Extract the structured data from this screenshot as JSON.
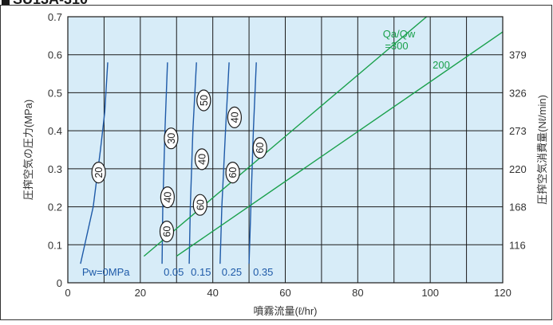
{
  "header": {
    "title": "SU13A-310"
  },
  "colors": {
    "plot_bg": "#d7ecf8",
    "grid": "#1a1a1a",
    "iso_line": "#1e5aa8",
    "ratio_line": "#19a04b",
    "text": "#333333"
  },
  "chart_data": {
    "type": "line",
    "title": "",
    "xlabel": "噴霧流量(ℓ/hr)",
    "ylabel": "圧搾空気の圧力(MPa)",
    "y2label": "圧搾空気消費量(Nℓ/min)",
    "xlim": [
      0,
      120
    ],
    "ylim": [
      0,
      0.7
    ],
    "xticks": [
      "0",
      "20",
      "40",
      "60",
      "80",
      "100",
      "120"
    ],
    "yticks": [
      "0",
      "0.1",
      "0.2",
      "0.3",
      "0.4",
      "0.5",
      "0.6",
      "0.7"
    ],
    "y2ticks": [
      {
        "y": 0.1,
        "label": "116"
      },
      {
        "y": 0.2,
        "label": "168"
      },
      {
        "y": 0.3,
        "label": "220"
      },
      {
        "y": 0.4,
        "label": "273"
      },
      {
        "y": 0.5,
        "label": "326"
      },
      {
        "y": 0.6,
        "label": "379"
      }
    ],
    "grid": true,
    "water_pressure_curves": [
      {
        "label": "Pw=0MPa",
        "points": [
          [
            3.5,
            0.05
          ],
          [
            7,
            0.2
          ],
          [
            9,
            0.35
          ],
          [
            10.2,
            0.45
          ],
          [
            11,
            0.58
          ]
        ]
      },
      {
        "label": "0.05",
        "points": [
          [
            26,
            0.05
          ],
          [
            26.2,
            0.2
          ],
          [
            26.8,
            0.4
          ],
          [
            27.5,
            0.58
          ]
        ]
      },
      {
        "label": "0.15",
        "points": [
          [
            33.5,
            0.05
          ],
          [
            33.8,
            0.2
          ],
          [
            34.5,
            0.4
          ],
          [
            35.5,
            0.58
          ]
        ]
      },
      {
        "label": "0.25",
        "points": [
          [
            42,
            0.05
          ],
          [
            42.5,
            0.2
          ],
          [
            43.5,
            0.4
          ],
          [
            44.5,
            0.58
          ]
        ]
      },
      {
        "label": "0.35",
        "points": [
          [
            50,
            0.05
          ],
          [
            50.5,
            0.2
          ],
          [
            51.2,
            0.4
          ],
          [
            52,
            0.58
          ]
        ]
      }
    ],
    "air_ratio_lines": [
      {
        "label": "Qa/Qw=300",
        "points": [
          [
            21,
            0.07
          ],
          [
            99,
            0.7
          ]
        ]
      },
      {
        "label": "200",
        "points": [
          [
            30,
            0.07
          ],
          [
            120,
            0.66
          ]
        ]
      }
    ],
    "consumption_markers": [
      {
        "label": "20",
        "x": 8.5,
        "y": 0.29
      },
      {
        "label": "30",
        "x": 28.5,
        "y": 0.38
      },
      {
        "label": "40",
        "x": 27.5,
        "y": 0.225
      },
      {
        "label": "60",
        "x": 27.3,
        "y": 0.135
      },
      {
        "label": "50",
        "x": 37.5,
        "y": 0.48
      },
      {
        "label": "40",
        "x": 37,
        "y": 0.325
      },
      {
        "label": "60",
        "x": 36.5,
        "y": 0.205
      },
      {
        "label": "40",
        "x": 46,
        "y": 0.435
      },
      {
        "label": "60",
        "x": 45.5,
        "y": 0.29
      },
      {
        "label": "60",
        "x": 53,
        "y": 0.355
      }
    ]
  }
}
